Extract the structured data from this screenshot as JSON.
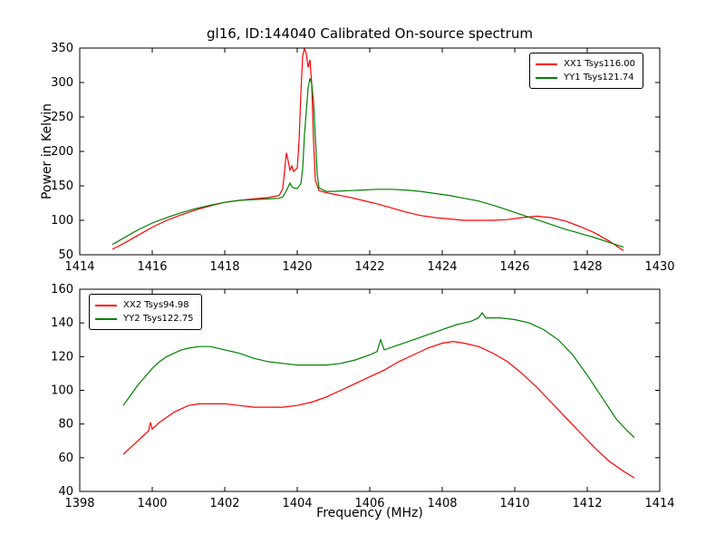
{
  "figure": {
    "title": "gl16, ID:144040 Calibrated On-source spectrum",
    "xlabel": "Frequency (MHz)",
    "ylabel": "Power in Kelvin",
    "background": "#ffffff"
  },
  "chart_data": [
    {
      "type": "line",
      "title": "gl16, ID:144040 Calibrated On-source spectrum",
      "ylabel": "Power in Kelvin",
      "xlim": [
        1414,
        1430
      ],
      "ylim": [
        50,
        350
      ],
      "xticks": [
        1414,
        1416,
        1418,
        1420,
        1422,
        1424,
        1426,
        1428,
        1430
      ],
      "yticks": [
        50,
        100,
        150,
        200,
        250,
        300,
        350
      ],
      "grid": false,
      "legend_position": "top-right",
      "series": [
        {
          "name": "XX1 Tsys116.00",
          "color": "#ff0000",
          "points": [
            [
              1414.9,
              58
            ],
            [
              1415.2,
              66
            ],
            [
              1415.6,
              78
            ],
            [
              1416.0,
              90
            ],
            [
              1416.4,
              100
            ],
            [
              1416.8,
              108
            ],
            [
              1417.2,
              115
            ],
            [
              1417.6,
              121
            ],
            [
              1418.0,
              126
            ],
            [
              1418.4,
              129
            ],
            [
              1418.8,
              131
            ],
            [
              1419.2,
              133
            ],
            [
              1419.5,
              136
            ],
            [
              1419.6,
              146
            ],
            [
              1419.65,
              172
            ],
            [
              1419.7,
              198
            ],
            [
              1419.75,
              186
            ],
            [
              1419.8,
              173
            ],
            [
              1419.85,
              179
            ],
            [
              1419.9,
              171
            ],
            [
              1420.0,
              176
            ],
            [
              1420.05,
              215
            ],
            [
              1420.1,
              285
            ],
            [
              1420.15,
              338
            ],
            [
              1420.2,
              350
            ],
            [
              1420.25,
              341
            ],
            [
              1420.3,
              322
            ],
            [
              1420.35,
              333
            ],
            [
              1420.4,
              296
            ],
            [
              1420.45,
              215
            ],
            [
              1420.5,
              158
            ],
            [
              1420.6,
              143
            ],
            [
              1420.8,
              140
            ],
            [
              1421.0,
              138
            ],
            [
              1421.4,
              134
            ],
            [
              1421.8,
              129
            ],
            [
              1422.2,
              124
            ],
            [
              1422.6,
              118
            ],
            [
              1423.0,
              112
            ],
            [
              1423.4,
              107
            ],
            [
              1423.8,
              104
            ],
            [
              1424.2,
              102
            ],
            [
              1424.6,
              100
            ],
            [
              1425.0,
              100
            ],
            [
              1425.4,
              100
            ],
            [
              1425.8,
              101
            ],
            [
              1426.2,
              104
            ],
            [
              1426.6,
              106
            ],
            [
              1427.0,
              104
            ],
            [
              1427.4,
              99
            ],
            [
              1427.8,
              91
            ],
            [
              1428.2,
              82
            ],
            [
              1428.6,
              70
            ],
            [
              1429.0,
              56
            ]
          ]
        },
        {
          "name": "YY1 Tsys121.74",
          "color": "#008000",
          "points": [
            [
              1414.9,
              65
            ],
            [
              1415.2,
              74
            ],
            [
              1415.6,
              86
            ],
            [
              1416.0,
              96
            ],
            [
              1416.4,
              104
            ],
            [
              1416.8,
              111
            ],
            [
              1417.2,
              117
            ],
            [
              1417.6,
              122
            ],
            [
              1418.0,
              126
            ],
            [
              1418.4,
              129
            ],
            [
              1418.8,
              130
            ],
            [
              1419.2,
              131
            ],
            [
              1419.5,
              132
            ],
            [
              1419.6,
              134
            ],
            [
              1419.7,
              143
            ],
            [
              1419.8,
              154
            ],
            [
              1419.85,
              149
            ],
            [
              1419.9,
              147
            ],
            [
              1420.0,
              146
            ],
            [
              1420.1,
              153
            ],
            [
              1420.15,
              175
            ],
            [
              1420.2,
              225
            ],
            [
              1420.3,
              292
            ],
            [
              1420.35,
              306
            ],
            [
              1420.4,
              298
            ],
            [
              1420.45,
              272
            ],
            [
              1420.5,
              220
            ],
            [
              1420.55,
              168
            ],
            [
              1420.6,
              147
            ],
            [
              1420.8,
              142
            ],
            [
              1421.0,
              142
            ],
            [
              1421.4,
              143
            ],
            [
              1421.8,
              144
            ],
            [
              1422.2,
              145
            ],
            [
              1422.6,
              145
            ],
            [
              1423.0,
              144
            ],
            [
              1423.4,
              142
            ],
            [
              1423.8,
              139
            ],
            [
              1424.2,
              136
            ],
            [
              1424.6,
              132
            ],
            [
              1425.0,
              128
            ],
            [
              1425.4,
              122
            ],
            [
              1425.8,
              115
            ],
            [
              1426.2,
              108
            ],
            [
              1426.6,
              101
            ],
            [
              1427.0,
              94
            ],
            [
              1427.4,
              87
            ],
            [
              1427.8,
              81
            ],
            [
              1428.2,
              75
            ],
            [
              1428.6,
              68
            ],
            [
              1429.0,
              61
            ]
          ]
        }
      ]
    },
    {
      "type": "line",
      "xlabel": "Frequency (MHz)",
      "xlim": [
        1398,
        1414
      ],
      "ylim": [
        40,
        160
      ],
      "xticks": [
        1398,
        1400,
        1402,
        1404,
        1406,
        1408,
        1410,
        1412,
        1414
      ],
      "yticks": [
        40,
        60,
        80,
        100,
        120,
        140,
        160
      ],
      "grid": false,
      "legend_position": "top-left",
      "series": [
        {
          "name": "XX2 Tsys94.98",
          "color": "#ff0000",
          "points": [
            [
              1399.2,
              62
            ],
            [
              1399.4,
              66
            ],
            [
              1399.6,
              70
            ],
            [
              1399.8,
              74
            ],
            [
              1399.9,
              76
            ],
            [
              1399.95,
              81
            ],
            [
              1400.0,
              77
            ],
            [
              1400.2,
              81
            ],
            [
              1400.4,
              84
            ],
            [
              1400.6,
              87
            ],
            [
              1400.8,
              89
            ],
            [
              1401.0,
              91
            ],
            [
              1401.3,
              92
            ],
            [
              1401.6,
              92
            ],
            [
              1402.0,
              92
            ],
            [
              1402.4,
              91
            ],
            [
              1402.8,
              90
            ],
            [
              1403.2,
              90
            ],
            [
              1403.6,
              90
            ],
            [
              1404.0,
              91
            ],
            [
              1404.4,
              93
            ],
            [
              1404.8,
              96
            ],
            [
              1405.2,
              100
            ],
            [
              1405.6,
              104
            ],
            [
              1406.0,
              108
            ],
            [
              1406.4,
              112
            ],
            [
              1406.8,
              117
            ],
            [
              1407.2,
              121
            ],
            [
              1407.6,
              125
            ],
            [
              1408.0,
              128
            ],
            [
              1408.3,
              129
            ],
            [
              1408.6,
              128
            ],
            [
              1409.0,
              126
            ],
            [
              1409.4,
              122
            ],
            [
              1409.8,
              117
            ],
            [
              1410.2,
              110
            ],
            [
              1410.6,
              102
            ],
            [
              1411.0,
              93
            ],
            [
              1411.4,
              84
            ],
            [
              1411.8,
              75
            ],
            [
              1412.2,
              66
            ],
            [
              1412.6,
              58
            ],
            [
              1413.0,
              52
            ],
            [
              1413.3,
              48
            ]
          ]
        },
        {
          "name": "YY2 Tsys122.75",
          "color": "#008000",
          "points": [
            [
              1399.2,
              91
            ],
            [
              1399.4,
              97
            ],
            [
              1399.6,
              103
            ],
            [
              1399.8,
              108
            ],
            [
              1400.0,
              113
            ],
            [
              1400.2,
              117
            ],
            [
              1400.4,
              120
            ],
            [
              1400.6,
              122
            ],
            [
              1400.8,
              124
            ],
            [
              1401.0,
              125
            ],
            [
              1401.3,
              126
            ],
            [
              1401.6,
              126
            ],
            [
              1402.0,
              124
            ],
            [
              1402.4,
              122
            ],
            [
              1402.8,
              119
            ],
            [
              1403.2,
              117
            ],
            [
              1403.6,
              116
            ],
            [
              1404.0,
              115
            ],
            [
              1404.4,
              115
            ],
            [
              1404.8,
              115
            ],
            [
              1405.2,
              116
            ],
            [
              1405.6,
              118
            ],
            [
              1406.0,
              121
            ],
            [
              1406.2,
              123
            ],
            [
              1406.3,
              130
            ],
            [
              1406.4,
              124
            ],
            [
              1406.8,
              127
            ],
            [
              1407.2,
              130
            ],
            [
              1407.6,
              133
            ],
            [
              1408.0,
              136
            ],
            [
              1408.4,
              139
            ],
            [
              1408.8,
              141
            ],
            [
              1409.0,
              143
            ],
            [
              1409.1,
              146
            ],
            [
              1409.2,
              143
            ],
            [
              1409.6,
              143
            ],
            [
              1410.0,
              142
            ],
            [
              1410.4,
              140
            ],
            [
              1410.8,
              136
            ],
            [
              1411.2,
              130
            ],
            [
              1411.6,
              121
            ],
            [
              1412.0,
              109
            ],
            [
              1412.4,
              96
            ],
            [
              1412.8,
              83
            ],
            [
              1413.1,
              76
            ],
            [
              1413.3,
              72
            ]
          ]
        }
      ]
    }
  ]
}
